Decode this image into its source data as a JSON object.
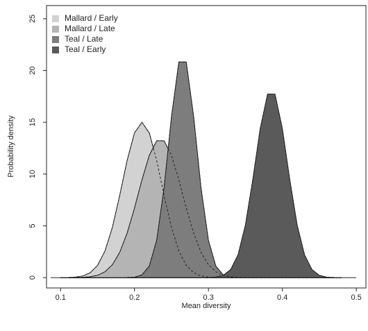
{
  "chart_data": {
    "type": "area",
    "x_label": "Mean diversity",
    "y_label": "Probability density",
    "x": [
      0.1,
      0.11,
      0.12,
      0.13,
      0.14,
      0.15,
      0.16,
      0.17,
      0.18,
      0.19,
      0.2,
      0.21,
      0.22,
      0.23,
      0.24,
      0.25,
      0.26,
      0.27,
      0.28,
      0.29,
      0.3,
      0.31,
      0.32,
      0.33,
      0.34,
      0.35,
      0.36,
      0.37,
      0.38,
      0.39,
      0.4,
      0.41,
      0.42,
      0.43,
      0.44,
      0.45,
      0.46,
      0.47,
      0.48
    ],
    "series": [
      {
        "name": "Mallard / Early",
        "color": "#d2d2d2",
        "values": [
          0,
          0.01,
          0.05,
          0.16,
          0.47,
          1.18,
          2.56,
          4.84,
          7.94,
          11.31,
          13.98,
          15,
          13.98,
          11.31,
          7.94,
          4.84,
          2.56,
          1.18,
          0.47,
          0.16,
          0.05,
          0.01,
          0,
          0,
          0,
          0,
          0,
          0,
          0,
          0,
          0,
          0,
          0,
          0,
          0,
          0,
          0,
          0,
          0
        ]
      },
      {
        "name": "Mallard / Late",
        "color": "#b4b4b4",
        "values": [
          0,
          0,
          0.01,
          0.03,
          0.08,
          0.23,
          0.56,
          1.24,
          2.44,
          4.29,
          6.72,
          9.42,
          11.8,
          13.21,
          13.21,
          11.8,
          9.42,
          6.72,
          4.29,
          2.44,
          1.24,
          0.56,
          0.23,
          0.08,
          0.03,
          0.01,
          0,
          0,
          0,
          0,
          0,
          0,
          0,
          0,
          0,
          0,
          0,
          0,
          0
        ]
      },
      {
        "name": "Teal / Late",
        "color": "#7d7d7d",
        "values": [
          0,
          0,
          0,
          0,
          0,
          0,
          0,
          0,
          0,
          0.01,
          0.04,
          0.26,
          1.12,
          3.61,
          8.67,
          15.55,
          20.83,
          20.83,
          15.55,
          8.67,
          3.61,
          1.12,
          0.26,
          0.04,
          0.01,
          0,
          0,
          0,
          0,
          0,
          0,
          0,
          0,
          0,
          0,
          0,
          0,
          0,
          0
        ]
      },
      {
        "name": "Teal / Early",
        "color": "#5a5a5a",
        "values": [
          0,
          0,
          0,
          0,
          0,
          0,
          0,
          0,
          0,
          0,
          0,
          0,
          0,
          0,
          0,
          0,
          0,
          0,
          0,
          0,
          0.01,
          0.05,
          0.22,
          0.78,
          2.2,
          5.08,
          9.48,
          14.39,
          17.73,
          17.73,
          14.39,
          9.48,
          5.08,
          2.2,
          0.78,
          0.22,
          0.05,
          0.01,
          0
        ]
      }
    ],
    "xlim": [
      0.081,
      0.513
    ],
    "ylim": [
      -1.0,
      26.27
    ],
    "xticks": [
      0.1,
      0.2,
      0.3,
      0.4,
      0.5
    ],
    "yticks": [
      0,
      5,
      10,
      15,
      20,
      25
    ],
    "legend": "top-left"
  }
}
